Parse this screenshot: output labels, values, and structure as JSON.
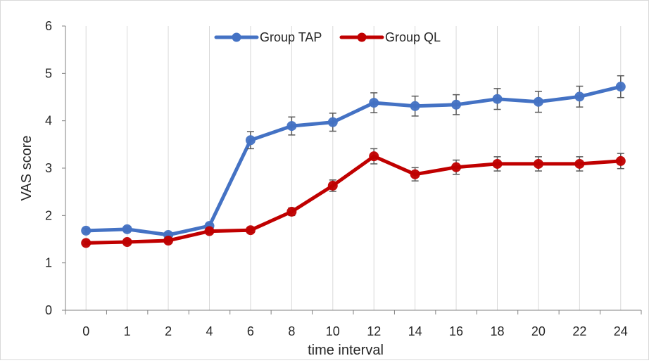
{
  "chart_data": {
    "type": "line",
    "categories": [
      "0",
      "1",
      "2",
      "4",
      "6",
      "8",
      "10",
      "12",
      "14",
      "16",
      "18",
      "20",
      "22",
      "24"
    ],
    "xlabel": "time interval",
    "ylabel": "VAS score",
    "ylim": [
      0,
      6
    ],
    "yticks": [
      0,
      1,
      2,
      3,
      4,
      5,
      6
    ],
    "grid": "vertical",
    "legend_position": "top-center",
    "series": [
      {
        "name": "Group TAP",
        "color": "#4472c4",
        "values": [
          1.68,
          1.71,
          1.59,
          1.78,
          3.59,
          3.89,
          3.97,
          4.38,
          4.31,
          4.34,
          4.46,
          4.4,
          4.51,
          4.72
        ],
        "errors": [
          0.05,
          0.05,
          0.05,
          0.05,
          0.18,
          0.19,
          0.19,
          0.21,
          0.21,
          0.21,
          0.22,
          0.22,
          0.22,
          0.23
        ]
      },
      {
        "name": "Group QL",
        "color": "#c00000",
        "values": [
          1.42,
          1.44,
          1.47,
          1.67,
          1.69,
          2.08,
          2.63,
          3.25,
          2.87,
          3.02,
          3.09,
          3.09,
          3.09,
          3.15
        ],
        "errors": [
          0.04,
          0.04,
          0.05,
          0.05,
          0.05,
          0.08,
          0.12,
          0.16,
          0.14,
          0.15,
          0.15,
          0.15,
          0.15,
          0.16
        ]
      }
    ]
  }
}
